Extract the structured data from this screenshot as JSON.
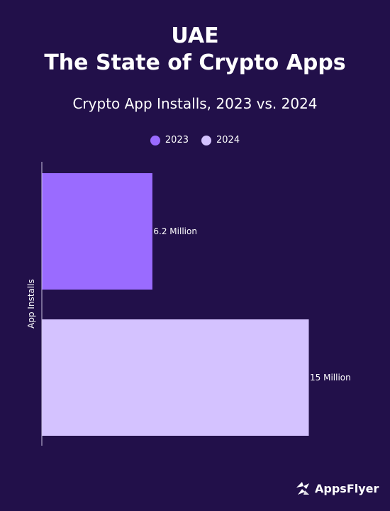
{
  "title": {
    "line1": "UAE",
    "line2": "The State of Crypto Apps"
  },
  "brand": {
    "name": "AppsFlyer",
    "icon": "appsflyer-logo-icon"
  },
  "colors": {
    "background": "#22104a",
    "series_2023": "#9a6bff",
    "series_2024": "#d4c2ff",
    "axis": "#c9c2e0"
  },
  "chart_data": {
    "type": "bar",
    "orientation": "horizontal",
    "title": "Crypto App Installs, 2023 vs. 2024",
    "ylabel": "App Installs",
    "xlabel": "",
    "unit": "Million",
    "xlim": [
      0,
      15
    ],
    "grid": false,
    "legend": "top-center",
    "series": [
      {
        "name": "2023",
        "value": 6.2,
        "label": "6.2 Million",
        "color": "#9a6bff"
      },
      {
        "name": "2024",
        "value": 15,
        "label": "15 Million",
        "color": "#d4c2ff"
      }
    ]
  }
}
